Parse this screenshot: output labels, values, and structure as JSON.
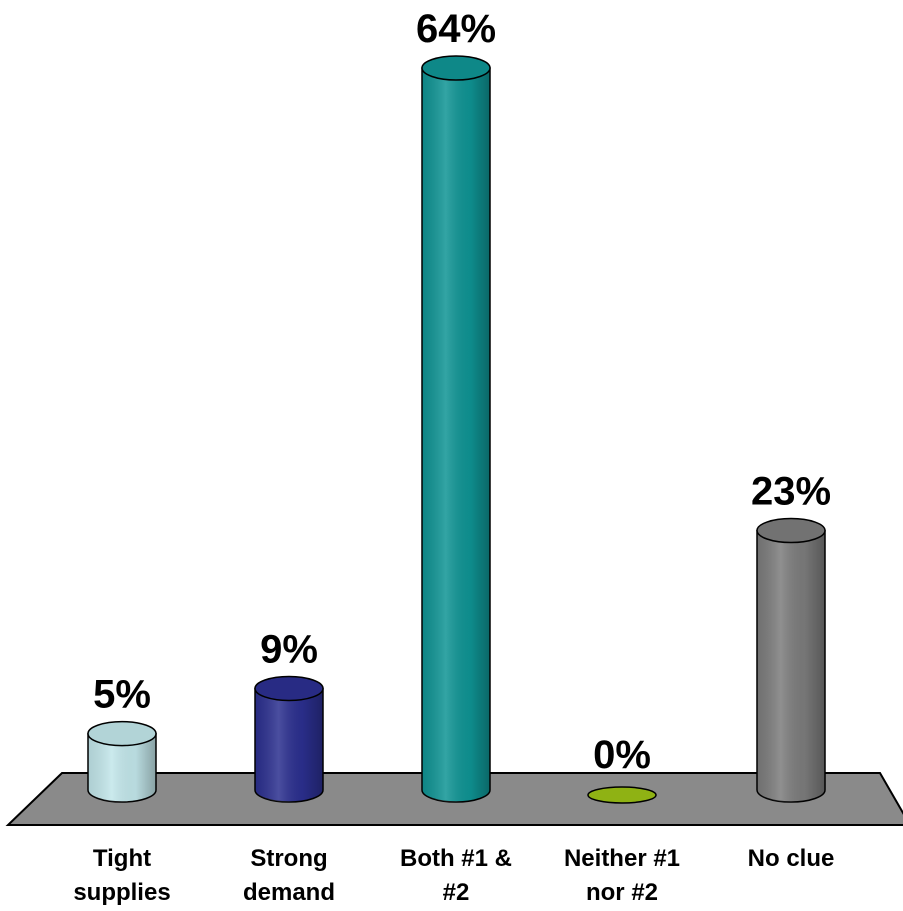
{
  "chart_data": {
    "type": "bar",
    "style": "3d-cylinder",
    "categories": [
      [
        "Tight",
        "supplies"
      ],
      [
        "Strong",
        "demand"
      ],
      [
        "Both #1 &",
        "#2"
      ],
      [
        "Neither #1",
        "nor #2"
      ],
      [
        "No clue"
      ]
    ],
    "values": [
      5,
      9,
      64,
      0,
      23
    ],
    "data_labels": [
      "5%",
      "9%",
      "64%",
      "0%",
      "23%"
    ],
    "colors": [
      "#c2e6ea",
      "#2b2f8f",
      "#0f9494",
      "#8fb214",
      "#7c7c7c"
    ],
    "floor_color": "#8a8a8a",
    "ylim": [
      0,
      64
    ],
    "grid": false,
    "legend": "none"
  }
}
